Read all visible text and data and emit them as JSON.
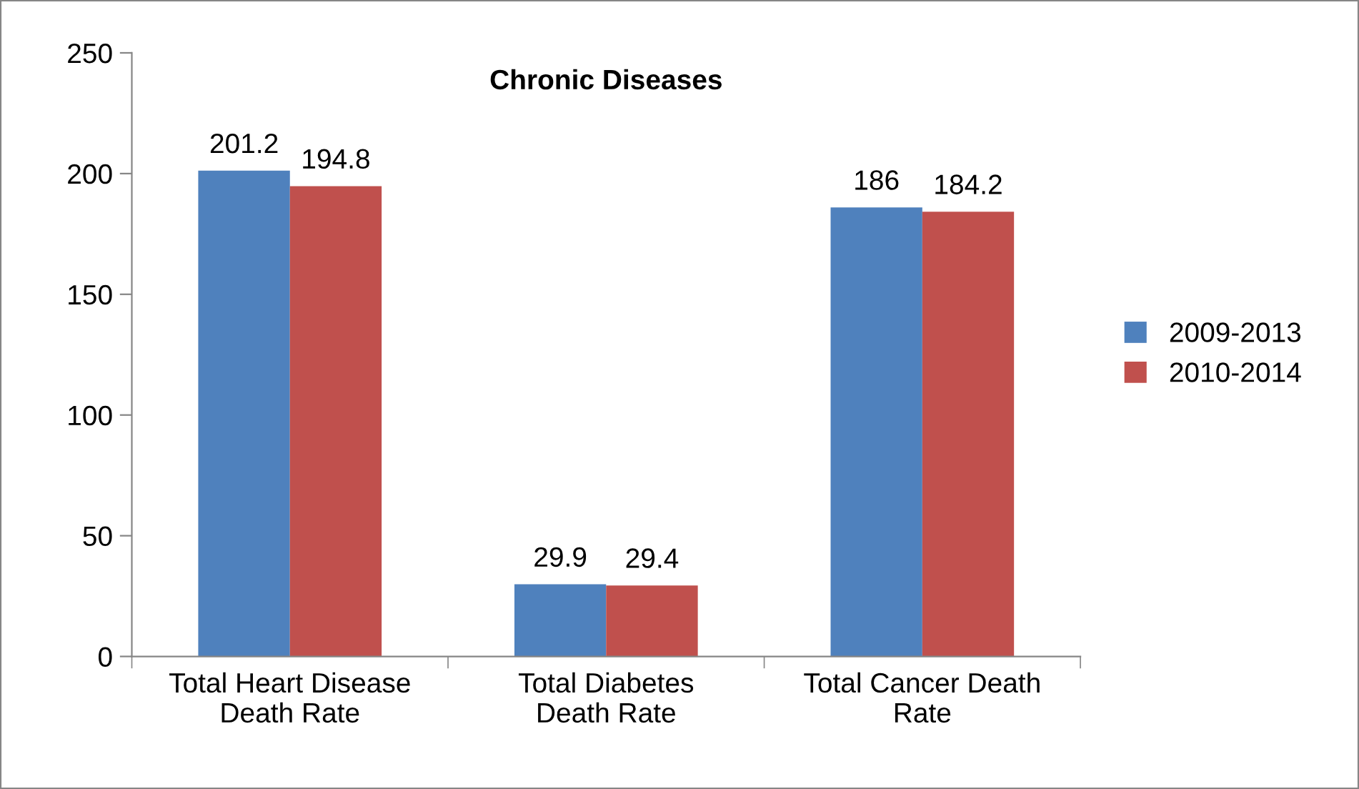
{
  "chart_data": {
    "type": "bar",
    "title": "Chronic Diseases",
    "categories": [
      "Total Heart Disease\nDeath Rate",
      "Total Diabetes\nDeath Rate",
      "Total Cancer Death\nRate"
    ],
    "series": [
      {
        "name": "2009-2013",
        "color": "#4f81bd",
        "values": [
          201.2,
          29.9,
          186
        ]
      },
      {
        "name": "2010-2014",
        "color": "#c0504d",
        "values": [
          194.8,
          29.4,
          184.2
        ]
      }
    ],
    "ylim": [
      0,
      250
    ],
    "yticks": [
      0,
      50,
      100,
      150,
      200,
      250
    ],
    "grid": false,
    "legend": "right",
    "data_labels": true
  }
}
